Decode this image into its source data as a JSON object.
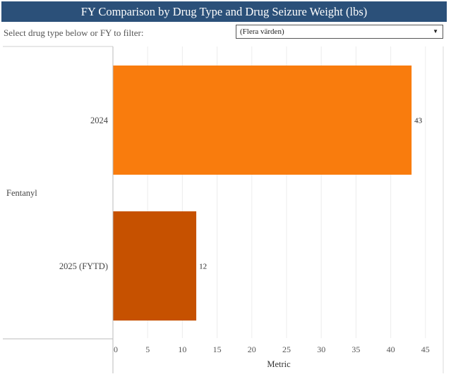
{
  "header": {
    "title": "FY Comparison by Drug Type and Drug Seizure Weight (lbs)"
  },
  "filter": {
    "label": "Select drug type below or FY to filter:",
    "selected": "(Flera värden)"
  },
  "colors": {
    "title_bg": "#2b5079",
    "fy2024": "#f97c0d",
    "fy2025": "#c65100"
  },
  "chart_data": {
    "type": "bar",
    "orientation": "horizontal",
    "groups": [
      {
        "drug": "Fentanyl",
        "bars": [
          {
            "category": "2024",
            "value": 43,
            "label": "43",
            "color": "#f97c0d"
          },
          {
            "category": "2025 (FYTD)",
            "value": 12,
            "label": "12",
            "color": "#c65100"
          }
        ]
      }
    ],
    "xlabel": "Metric",
    "xlim": [
      0,
      45
    ],
    "xticks": [
      0,
      5,
      10,
      15,
      20,
      25,
      30,
      35,
      40,
      45
    ],
    "grid": true
  }
}
